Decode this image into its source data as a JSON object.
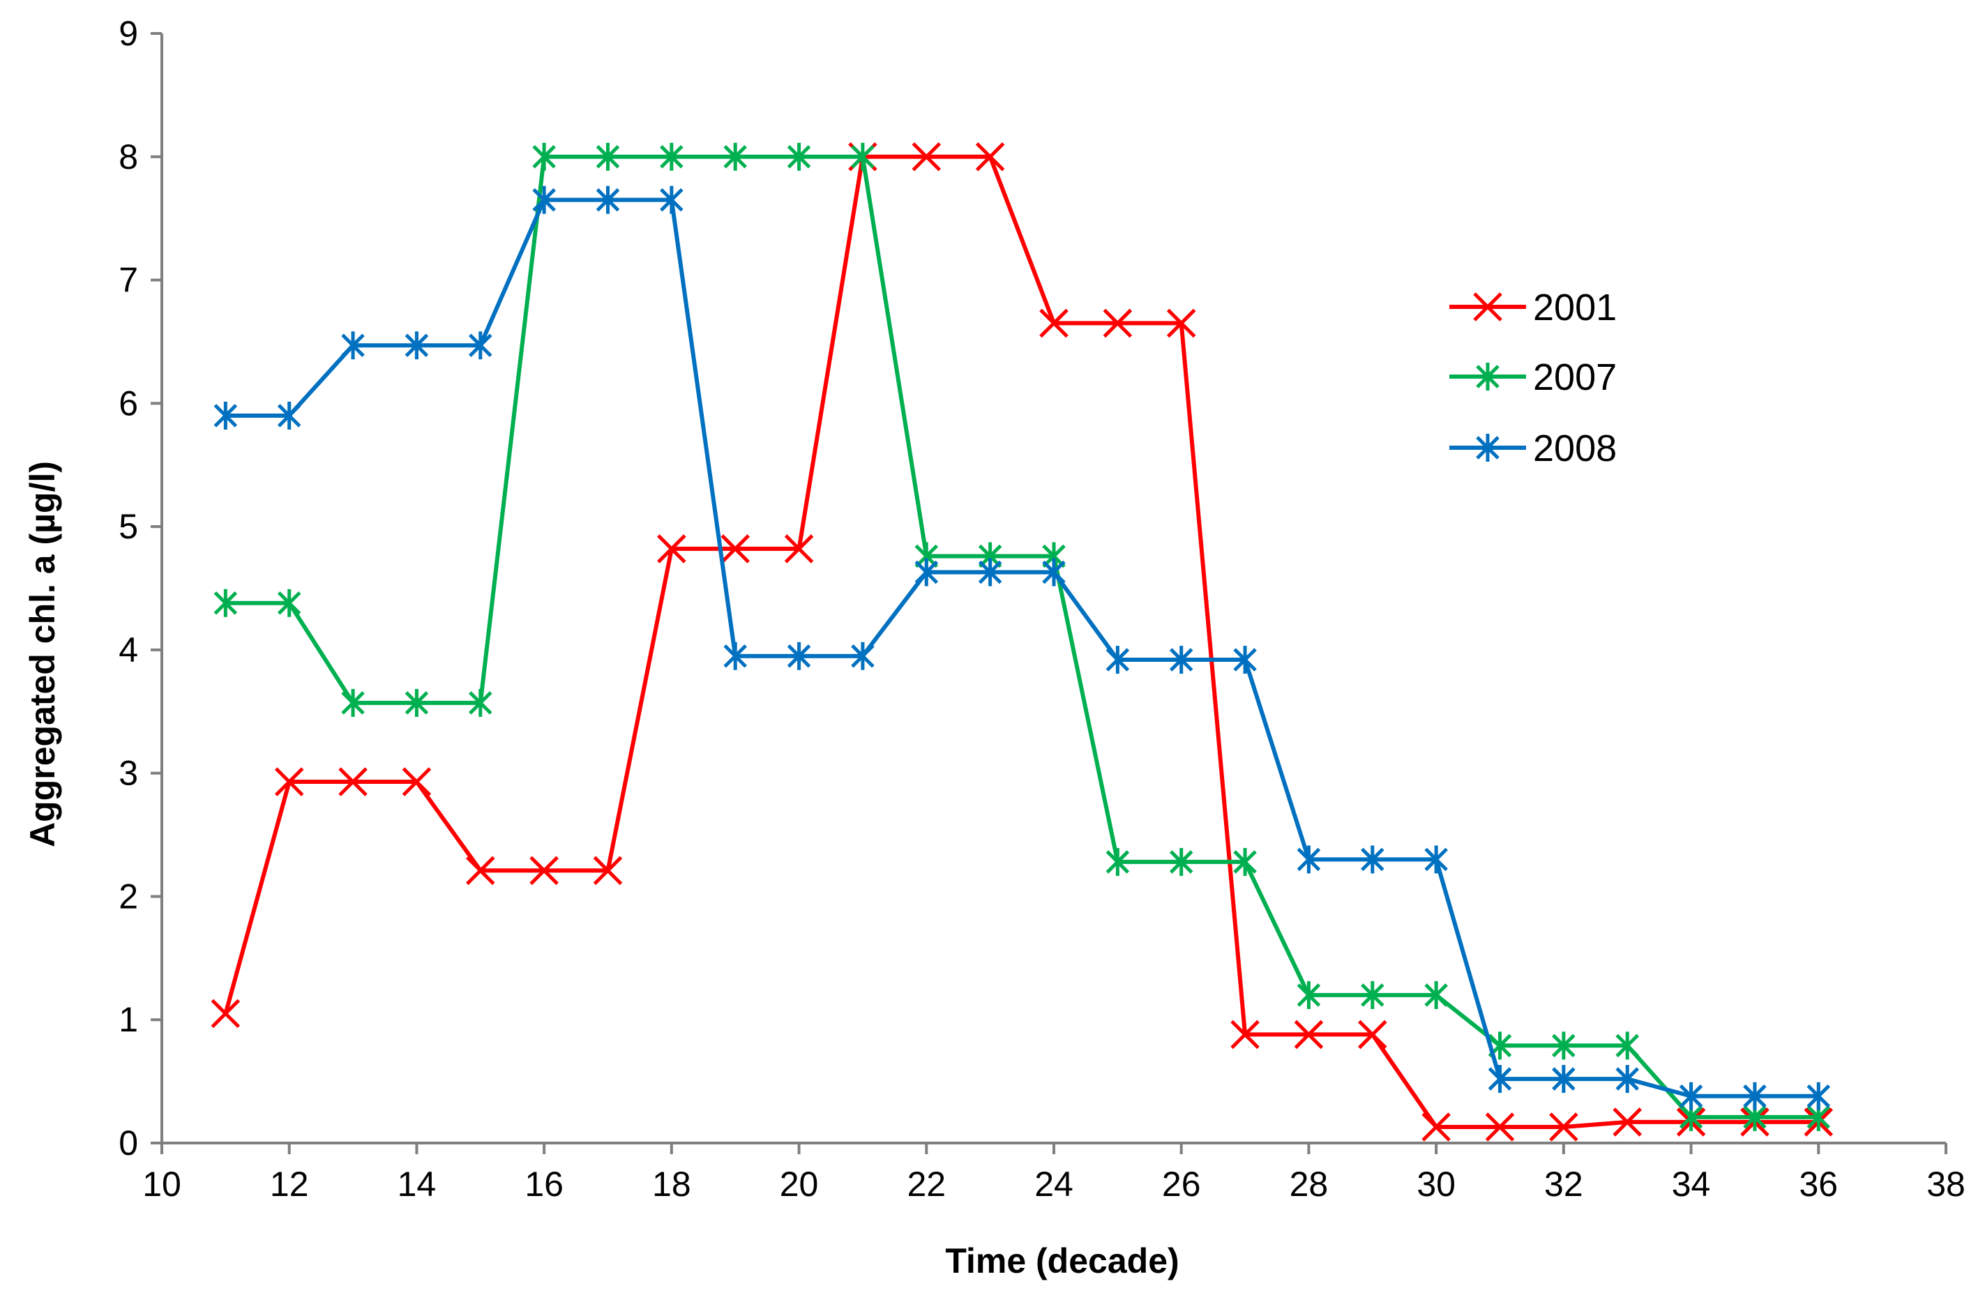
{
  "chart_data": {
    "type": "line",
    "title": "",
    "xlabel": "Time (decade)",
    "ylabel": "Aggregated chl. a (µg/l)",
    "xlim": [
      10,
      38
    ],
    "ylim": [
      0,
      9
    ],
    "xticks": [
      "10",
      "12",
      "14",
      "16",
      "18",
      "20",
      "22",
      "24",
      "26",
      "28",
      "30",
      "32",
      "34",
      "36",
      "38"
    ],
    "yticks": [
      "0",
      "1",
      "2",
      "3",
      "4",
      "5",
      "6",
      "7",
      "8",
      "9"
    ],
    "grid": false,
    "legend": "right",
    "x": [
      11,
      12,
      13,
      14,
      15,
      16,
      17,
      18,
      19,
      20,
      21,
      22,
      23,
      24,
      25,
      26,
      27,
      28,
      29,
      30,
      31,
      32,
      33,
      34,
      35,
      36
    ],
    "series": [
      {
        "name": "2001",
        "color": "#ff0000",
        "marker": "x",
        "values": [
          1.05,
          2.93,
          2.93,
          2.93,
          2.21,
          2.21,
          2.21,
          4.82,
          4.82,
          4.82,
          8.0,
          8.0,
          8.0,
          6.65,
          6.65,
          6.65,
          0.88,
          0.88,
          0.88,
          0.13,
          0.13,
          0.13,
          0.17,
          0.17,
          0.17,
          0.17
        ]
      },
      {
        "name": "2007",
        "color": "#00b050",
        "marker": "asterisk",
        "values": [
          4.38,
          4.38,
          3.57,
          3.57,
          3.57,
          8.0,
          8.0,
          8.0,
          8.0,
          8.0,
          8.0,
          4.76,
          4.76,
          4.76,
          2.28,
          2.28,
          2.28,
          1.2,
          1.2,
          1.2,
          0.79,
          0.79,
          0.79,
          0.21,
          0.21,
          0.21
        ]
      },
      {
        "name": "2008",
        "color": "#0070c0",
        "marker": "asterisk",
        "values": [
          5.9,
          5.9,
          6.47,
          6.47,
          6.47,
          7.65,
          7.65,
          7.65,
          3.95,
          3.95,
          3.95,
          4.63,
          4.63,
          4.63,
          3.92,
          3.92,
          3.92,
          2.3,
          2.3,
          2.3,
          0.52,
          0.52,
          0.52,
          0.38,
          0.38,
          0.38
        ]
      }
    ]
  }
}
